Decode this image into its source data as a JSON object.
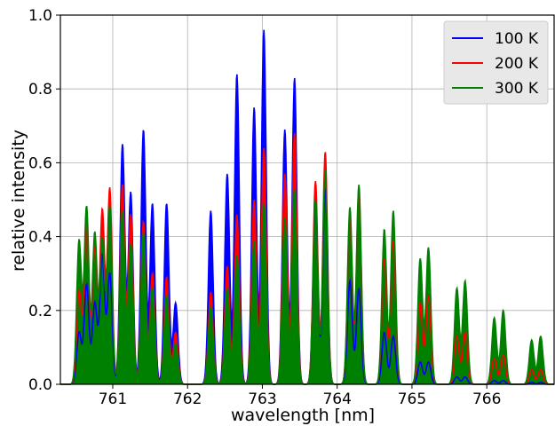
{
  "chart_data": {
    "type": "area",
    "xlabel": "wavelength [nm]",
    "ylabel": "relative intensity",
    "xlim": [
      760.3,
      766.9
    ],
    "ylim": [
      0.0,
      1.0
    ],
    "grid": true,
    "legend_position": "top-right",
    "x_ticks": [
      761,
      762,
      763,
      764,
      765,
      766
    ],
    "x_tick_labels": [
      "761",
      "762",
      "763",
      "764",
      "765",
      "766"
    ],
    "y_ticks": [
      0.0,
      0.2,
      0.4,
      0.6,
      0.8,
      1.0
    ],
    "y_tick_labels": [
      "0.0",
      "0.2",
      "0.4",
      "0.6",
      "0.8",
      "1.0"
    ],
    "line_width": 0.045,
    "series": [
      {
        "name": "100 K",
        "color": "#0000ff",
        "lines": [
          [
            760.55,
            0.14
          ],
          [
            760.65,
            0.27
          ],
          [
            760.76,
            0.22
          ],
          [
            760.86,
            0.35
          ],
          [
            760.96,
            0.3
          ],
          [
            761.13,
            0.65
          ],
          [
            761.24,
            0.52
          ],
          [
            761.41,
            0.69
          ],
          [
            761.53,
            0.49
          ],
          [
            761.72,
            0.49
          ],
          [
            761.84,
            0.22
          ],
          [
            762.31,
            0.47
          ],
          [
            762.53,
            0.57
          ],
          [
            762.66,
            0.84
          ],
          [
            762.89,
            0.75
          ],
          [
            763.02,
            0.96
          ],
          [
            763.3,
            0.69
          ],
          [
            763.43,
            0.83
          ],
          [
            763.71,
            0.5
          ],
          [
            763.84,
            0.53
          ],
          [
            764.17,
            0.28
          ],
          [
            764.29,
            0.26
          ],
          [
            764.63,
            0.14
          ],
          [
            764.75,
            0.13
          ],
          [
            765.11,
            0.06
          ],
          [
            765.22,
            0.06
          ],
          [
            765.6,
            0.02
          ],
          [
            765.71,
            0.02
          ],
          [
            766.1,
            0.01
          ],
          [
            766.22,
            0.01
          ],
          [
            766.6,
            0.005
          ],
          [
            766.72,
            0.005
          ]
        ]
      },
      {
        "name": "200 K",
        "color": "#ff0000",
        "lines": [
          [
            760.55,
            0.25
          ],
          [
            760.65,
            0.44
          ],
          [
            760.76,
            0.37
          ],
          [
            760.86,
            0.47
          ],
          [
            760.96,
            0.53
          ],
          [
            761.13,
            0.54
          ],
          [
            761.24,
            0.46
          ],
          [
            761.41,
            0.44
          ],
          [
            761.53,
            0.3
          ],
          [
            761.72,
            0.29
          ],
          [
            761.84,
            0.14
          ],
          [
            762.31,
            0.25
          ],
          [
            762.53,
            0.32
          ],
          [
            762.66,
            0.46
          ],
          [
            762.89,
            0.5
          ],
          [
            763.02,
            0.64
          ],
          [
            763.3,
            0.57
          ],
          [
            763.43,
            0.68
          ],
          [
            763.71,
            0.55
          ],
          [
            763.84,
            0.63
          ],
          [
            764.17,
            0.45
          ],
          [
            764.29,
            0.52
          ],
          [
            764.63,
            0.34
          ],
          [
            764.75,
            0.39
          ],
          [
            765.11,
            0.22
          ],
          [
            765.22,
            0.24
          ],
          [
            765.6,
            0.13
          ],
          [
            765.71,
            0.14
          ],
          [
            766.1,
            0.07
          ],
          [
            766.22,
            0.08
          ],
          [
            766.6,
            0.04
          ],
          [
            766.72,
            0.04
          ]
        ]
      },
      {
        "name": "300 K",
        "color": "#008000",
        "lines": [
          [
            760.55,
            0.39
          ],
          [
            760.65,
            0.48
          ],
          [
            760.76,
            0.41
          ],
          [
            760.86,
            0.39
          ],
          [
            760.96,
            0.48
          ],
          [
            761.13,
            0.47
          ],
          [
            761.24,
            0.38
          ],
          [
            761.41,
            0.41
          ],
          [
            761.53,
            0.26
          ],
          [
            761.72,
            0.24
          ],
          [
            761.84,
            0.11
          ],
          [
            762.31,
            0.21
          ],
          [
            762.53,
            0.26
          ],
          [
            762.66,
            0.35
          ],
          [
            762.89,
            0.39
          ],
          [
            763.02,
            0.49
          ],
          [
            763.3,
            0.45
          ],
          [
            763.43,
            0.53
          ],
          [
            763.71,
            0.5
          ],
          [
            763.84,
            0.58
          ],
          [
            764.17,
            0.48
          ],
          [
            764.29,
            0.54
          ],
          [
            764.63,
            0.42
          ],
          [
            764.75,
            0.47
          ],
          [
            765.11,
            0.34
          ],
          [
            765.22,
            0.37
          ],
          [
            765.6,
            0.26
          ],
          [
            765.71,
            0.28
          ],
          [
            766.1,
            0.18
          ],
          [
            766.22,
            0.2
          ],
          [
            766.6,
            0.12
          ],
          [
            766.72,
            0.13
          ]
        ]
      }
    ]
  }
}
